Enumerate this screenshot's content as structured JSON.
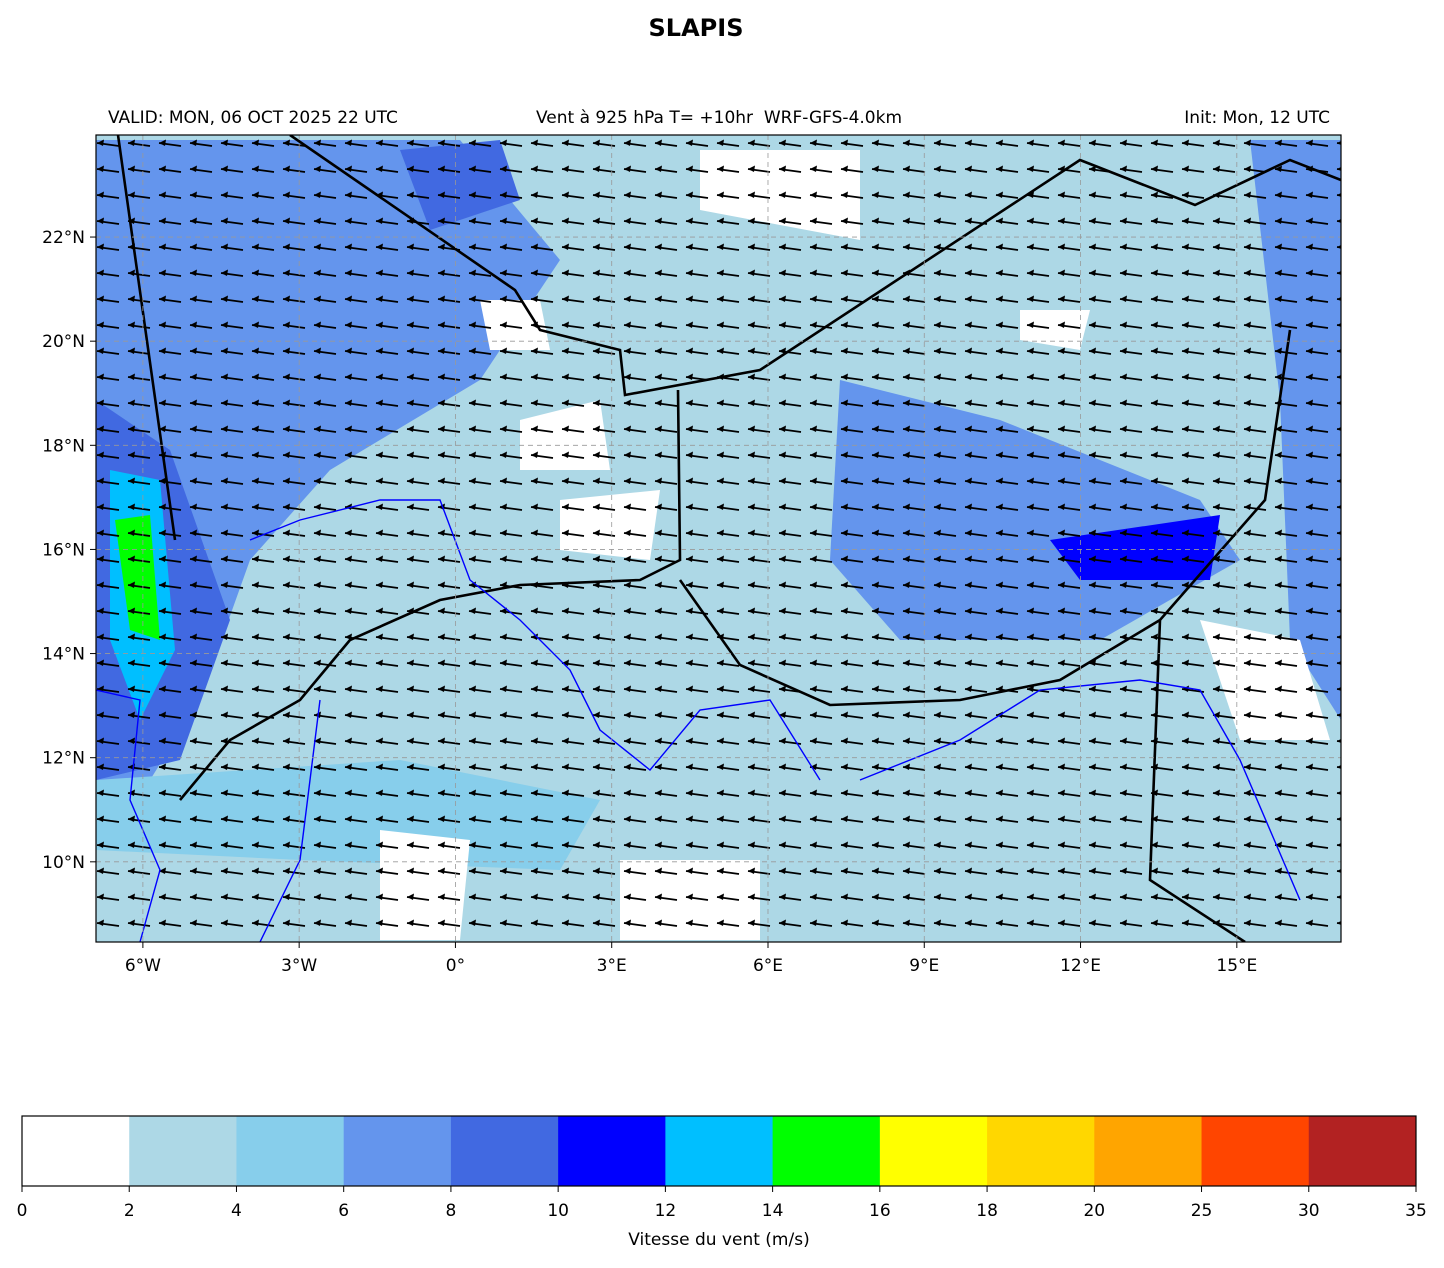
{
  "chart_data": {
    "type": "wind-map",
    "title": "SLAPIS",
    "subtitle_left": "VALID: MON, 06 OCT 2025 22 UTC",
    "subtitle_center": "Vent à 925 hPa T= +10hr  WRF-GFS-4.0km",
    "subtitle_right": "Init: Mon, 12 UTC",
    "xlim": [
      -6.9,
      17.0
    ],
    "ylim": [
      8.46,
      23.96
    ],
    "xticks": [
      {
        "value": -6,
        "label": "6°W"
      },
      {
        "value": -3,
        "label": "3°W"
      },
      {
        "value": 0,
        "label": "0°"
      },
      {
        "value": 3,
        "label": "3°E"
      },
      {
        "value": 6,
        "label": "6°E"
      },
      {
        "value": 9,
        "label": "9°E"
      },
      {
        "value": 12,
        "label": "12°E"
      },
      {
        "value": 15,
        "label": "15°E"
      }
    ],
    "yticks": [
      {
        "value": 10,
        "label": "10°N"
      },
      {
        "value": 12,
        "label": "12°N"
      },
      {
        "value": 14,
        "label": "14°N"
      },
      {
        "value": 16,
        "label": "16°N"
      },
      {
        "value": 18,
        "label": "18°N"
      },
      {
        "value": 20,
        "label": "20°N"
      },
      {
        "value": 22,
        "label": "22°N"
      }
    ],
    "grid": true,
    "colorbar": {
      "label": "Vitesse du vent (m/s)",
      "bounds": [
        0,
        2,
        4,
        6,
        8,
        10,
        12,
        14,
        16,
        18,
        20,
        25,
        30,
        35
      ],
      "colors": [
        "#ffffff",
        "#add8e6",
        "#87ceeb",
        "#6495ed",
        "#4169e1",
        "#0000ff",
        "#00bfff",
        "#00ff00",
        "#ffff00",
        "#ffd700",
        "#ffa500",
        "#ff4500",
        "#b22222"
      ]
    }
  }
}
